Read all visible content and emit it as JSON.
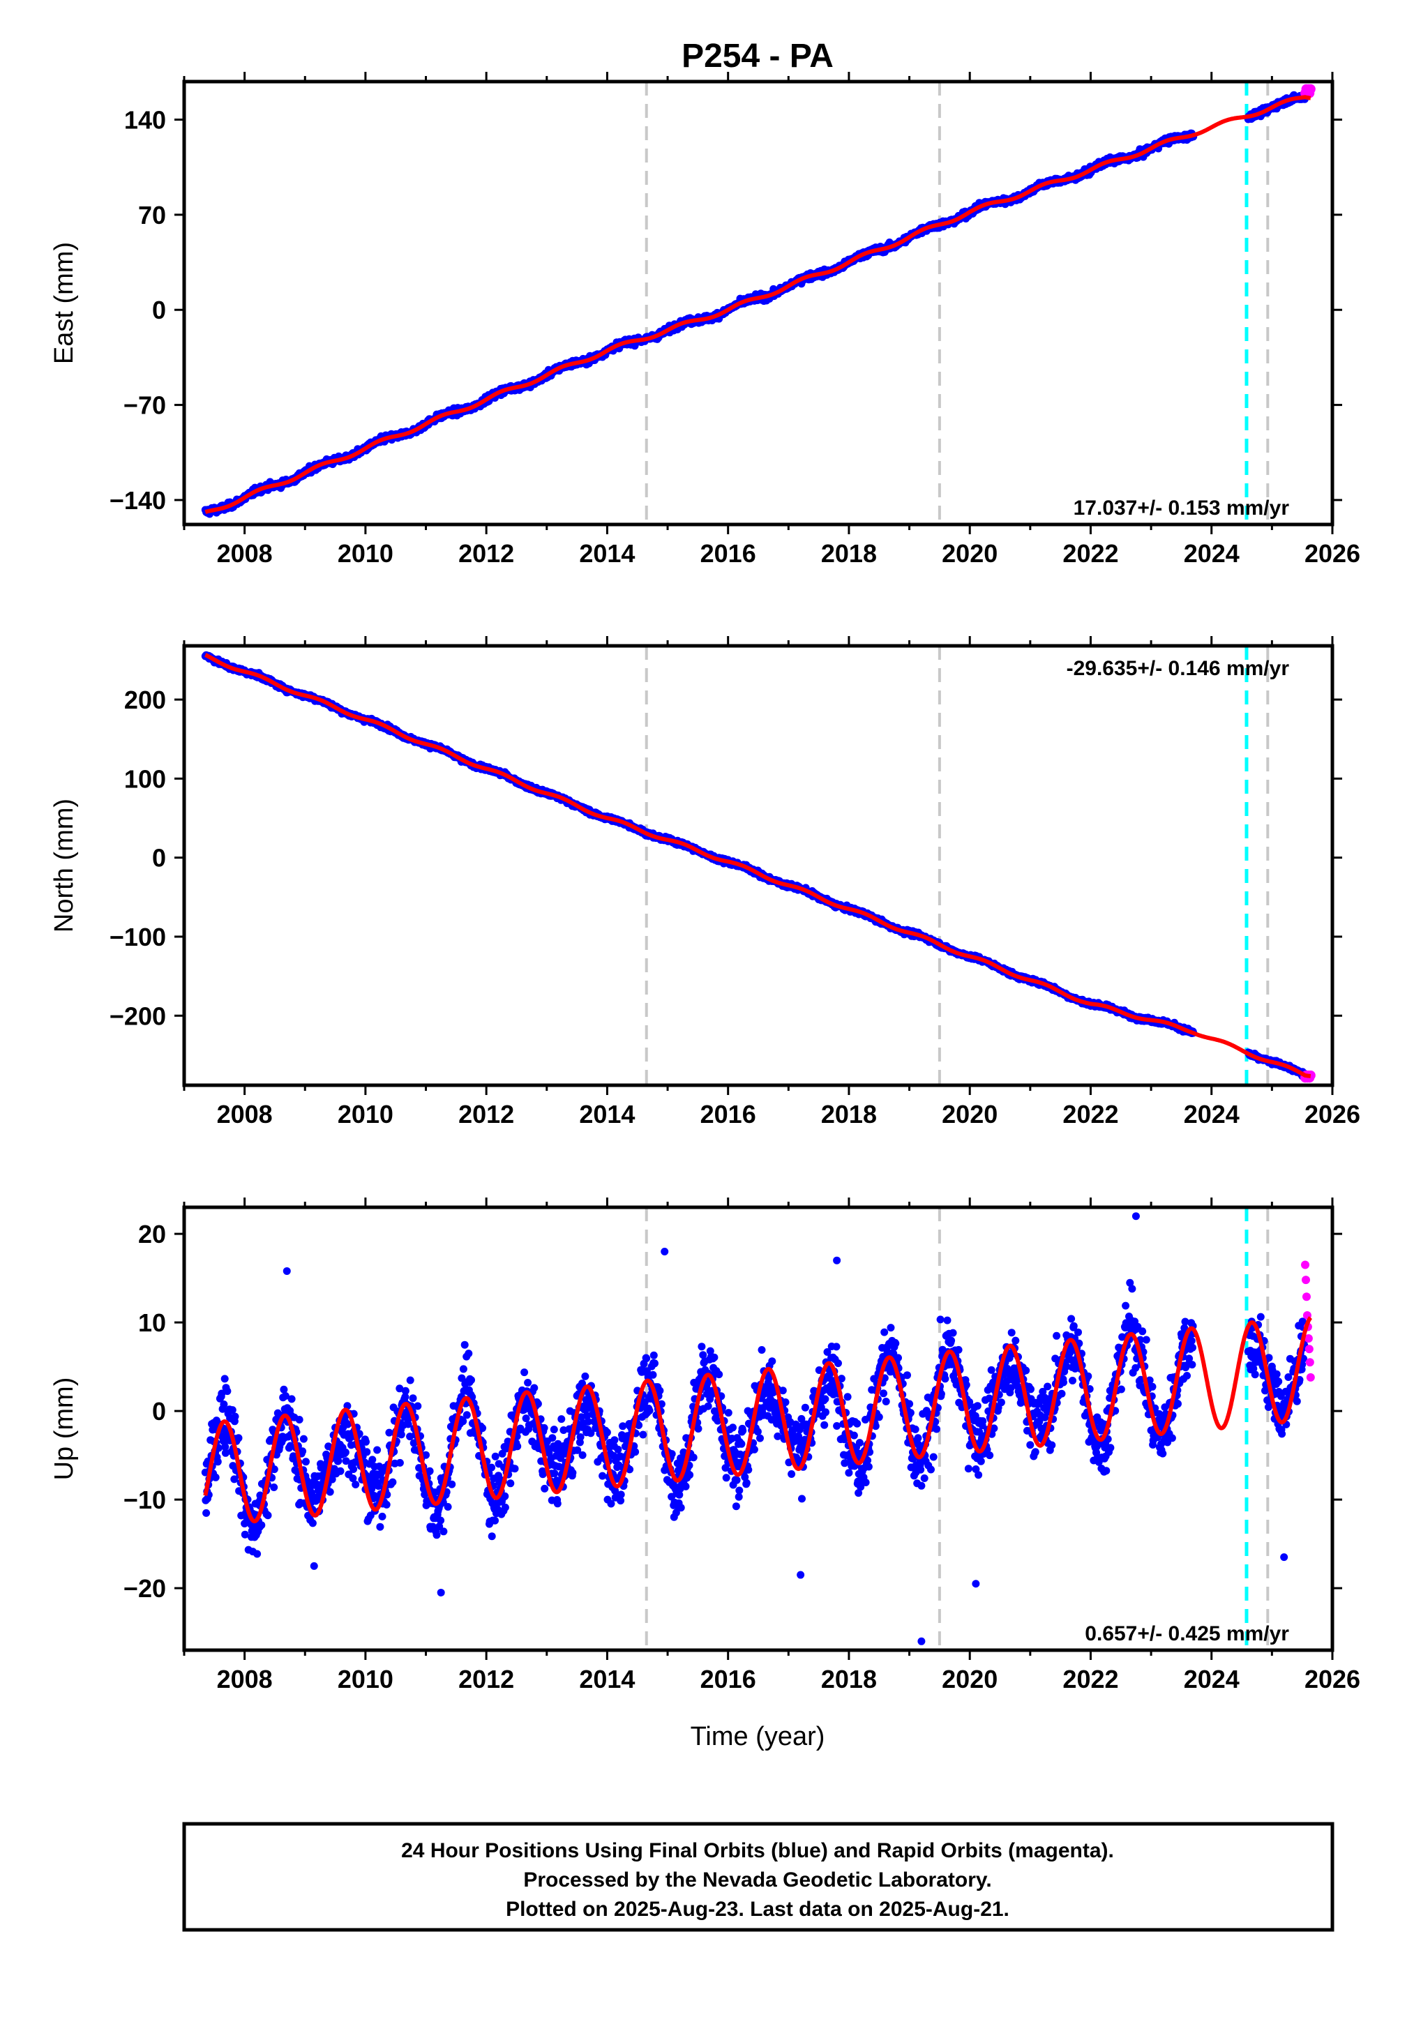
{
  "title": "P254 - PA",
  "xlabel": "Time (year)",
  "footer": {
    "line1": "24 Hour Positions Using Final Orbits (blue) and Rapid Orbits (magenta).",
    "line2": "Processed by the Nevada Geodetic Laboratory.",
    "line3": "Plotted on 2025-Aug-23. Last data on 2025-Aug-21."
  },
  "colors": {
    "final_orbits": "#0000ff",
    "rapid_orbits": "#ff00ff",
    "model_fit": "#ff0000",
    "equipment_change": "#c8c8c8",
    "earthquake": "#00ffff"
  },
  "chart_data": [
    {
      "type": "scatter",
      "component": "east",
      "ylabel": "East (mm)",
      "rate_label": "17.037+/- 0.153 mm/yr",
      "rate_position": "bottom-right",
      "xlim": [
        2007.0,
        2026.0
      ],
      "ylim": [
        -158,
        168
      ],
      "xticks": [
        2008,
        2010,
        2012,
        2014,
        2016,
        2018,
        2020,
        2022,
        2024,
        2026
      ],
      "yticks": [
        140,
        70,
        0,
        -70,
        -140
      ],
      "series": [
        {
          "name": "Final Orbits",
          "role": "observations",
          "data_start": 2007.35,
          "data_end": 2025.55,
          "gaps": [
            [
              2023.7,
              2024.6
            ]
          ],
          "anchor_points": [
            [
              2007.35,
              -150
            ],
            [
              2010.0,
              -102
            ],
            [
              2014.0,
              -30
            ],
            [
              2016.0,
              0
            ],
            [
              2018.0,
              35
            ],
            [
              2020.0,
              72
            ],
            [
              2022.0,
              103
            ],
            [
              2023.7,
              130
            ],
            [
              2025.55,
              157
            ]
          ],
          "noise_mm": 2.0
        },
        {
          "name": "Rapid Orbits",
          "role": "observations",
          "data_start": 2025.55,
          "data_end": 2025.64,
          "y_approx": 161
        },
        {
          "name": "Model fit",
          "role": "model",
          "slope_mm_per_yr": 17.037,
          "y_at_2016": 0,
          "seasonal_amplitude_mm": 1.5
        }
      ],
      "vertical_lines": [
        {
          "type": "equipment",
          "x": 2014.65
        },
        {
          "type": "equipment",
          "x": 2019.5
        },
        {
          "type": "earthquake",
          "x": 2024.58
        },
        {
          "type": "equipment",
          "x": 2024.93
        }
      ]
    },
    {
      "type": "scatter",
      "component": "north",
      "ylabel": "North (mm)",
      "rate_label": "-29.635+/- 0.146 mm/yr",
      "rate_position": "top-right",
      "xlim": [
        2007.0,
        2026.0
      ],
      "ylim": [
        -288,
        268
      ],
      "xticks": [
        2008,
        2010,
        2012,
        2014,
        2016,
        2018,
        2020,
        2022,
        2024,
        2026
      ],
      "yticks": [
        200,
        100,
        0,
        -100,
        -200
      ],
      "series": [
        {
          "name": "Final Orbits",
          "role": "observations",
          "data_start": 2007.35,
          "data_end": 2025.55,
          "gaps": [
            [
              2023.7,
              2024.6
            ]
          ],
          "anchor_points": [
            [
              2007.35,
              255
            ],
            [
              2010.0,
              175
            ],
            [
              2014.0,
              50
            ],
            [
              2016.0,
              -5
            ],
            [
              2018.0,
              -65
            ],
            [
              2020.0,
              -125
            ],
            [
              2022.0,
              -185
            ],
            [
              2023.7,
              -220
            ],
            [
              2025.55,
              -275
            ]
          ],
          "noise_mm": 2.5
        },
        {
          "name": "Rapid Orbits",
          "role": "observations",
          "data_start": 2025.55,
          "data_end": 2025.64,
          "y_approx": -277
        },
        {
          "name": "Model fit",
          "role": "model",
          "slope_mm_per_yr": -29.635,
          "y_at_2016": -5,
          "seasonal_amplitude_mm": 2.0
        }
      ],
      "vertical_lines": [
        {
          "type": "equipment",
          "x": 2014.65
        },
        {
          "type": "equipment",
          "x": 2019.5
        },
        {
          "type": "earthquake",
          "x": 2024.58
        },
        {
          "type": "equipment",
          "x": 2024.93
        }
      ]
    },
    {
      "type": "scatter",
      "component": "up",
      "ylabel": "Up (mm)",
      "rate_label": "0.657+/- 0.425 mm/yr",
      "rate_position": "bottom-right",
      "xlim": [
        2007.0,
        2026.0
      ],
      "ylim": [
        -27,
        23
      ],
      "xticks": [
        2008,
        2010,
        2012,
        2014,
        2016,
        2018,
        2020,
        2022,
        2024,
        2026
      ],
      "yticks": [
        20,
        10,
        0,
        -10,
        -20
      ],
      "series": [
        {
          "name": "Final Orbits",
          "role": "observations",
          "data_start": 2007.35,
          "data_end": 2025.55,
          "gaps": [
            [
              2023.7,
              2024.6
            ]
          ],
          "seasonal_amplitude_mm": 5.8,
          "seasonal_peak_month": 9,
          "noise_mm": 3.3,
          "outliers": [
            [
              2008.7,
              15.8
            ],
            [
              2009.15,
              -17.5
            ],
            [
              2011.25,
              -20.5
            ],
            [
              2014.95,
              18.0
            ],
            [
              2017.2,
              -18.5
            ],
            [
              2017.8,
              17.0
            ],
            [
              2019.2,
              -26.0
            ],
            [
              2020.1,
              -19.5
            ],
            [
              2022.75,
              22.0
            ],
            [
              2025.2,
              -16.5
            ]
          ]
        },
        {
          "name": "Rapid Orbits",
          "role": "observations",
          "data_start": 2025.55,
          "data_end": 2025.64,
          "values": [
            16.5,
            14.8,
            12.9,
            10.8,
            9.5,
            8.2,
            7.0,
            5.5,
            3.8
          ]
        },
        {
          "name": "Model fit",
          "role": "model",
          "slope_mm_per_yr": 0.657,
          "y_at_2016": -1.5,
          "seasonal_amplitude_mm": 5.8
        }
      ],
      "vertical_lines": [
        {
          "type": "equipment",
          "x": 2014.65
        },
        {
          "type": "equipment",
          "x": 2019.5
        },
        {
          "type": "earthquake",
          "x": 2024.58
        },
        {
          "type": "equipment",
          "x": 2024.93
        }
      ]
    }
  ]
}
